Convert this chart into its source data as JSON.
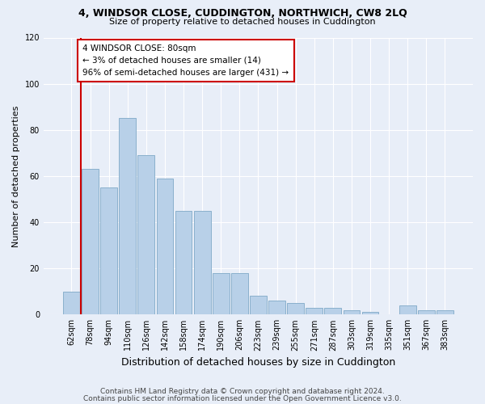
{
  "title1": "4, WINDSOR CLOSE, CUDDINGTON, NORTHWICH, CW8 2LQ",
  "title2": "Size of property relative to detached houses in Cuddington",
  "xlabel": "Distribution of detached houses by size in Cuddington",
  "ylabel": "Number of detached properties",
  "categories": [
    "62sqm",
    "78sqm",
    "94sqm",
    "110sqm",
    "126sqm",
    "142sqm",
    "158sqm",
    "174sqm",
    "190sqm",
    "206sqm",
    "223sqm",
    "239sqm",
    "255sqm",
    "271sqm",
    "287sqm",
    "303sqm",
    "319sqm",
    "335sqm",
    "351sqm",
    "367sqm",
    "383sqm"
  ],
  "values": [
    10,
    63,
    55,
    85,
    69,
    59,
    45,
    45,
    18,
    18,
    8,
    6,
    5,
    3,
    3,
    2,
    1,
    0,
    4,
    2,
    2
  ],
  "bar_color": "#b8d0e8",
  "bar_edge_color": "#8ab0cc",
  "red_line_x": 0.5,
  "annotation_title": "4 WINDSOR CLOSE: 80sqm",
  "annotation_line1": "← 3% of detached houses are smaller (14)",
  "annotation_line2": "96% of semi-detached houses are larger (431) →",
  "annotation_box_facecolor": "#ffffff",
  "annotation_box_edgecolor": "#cc0000",
  "red_line_color": "#cc0000",
  "bg_color": "#e8eef8",
  "grid_color": "#ffffff",
  "footnote1": "Contains HM Land Registry data © Crown copyright and database right 2024.",
  "footnote2": "Contains public sector information licensed under the Open Government Licence v3.0.",
  "ylim": [
    0,
    120
  ],
  "yticks": [
    0,
    20,
    40,
    60,
    80,
    100,
    120
  ]
}
